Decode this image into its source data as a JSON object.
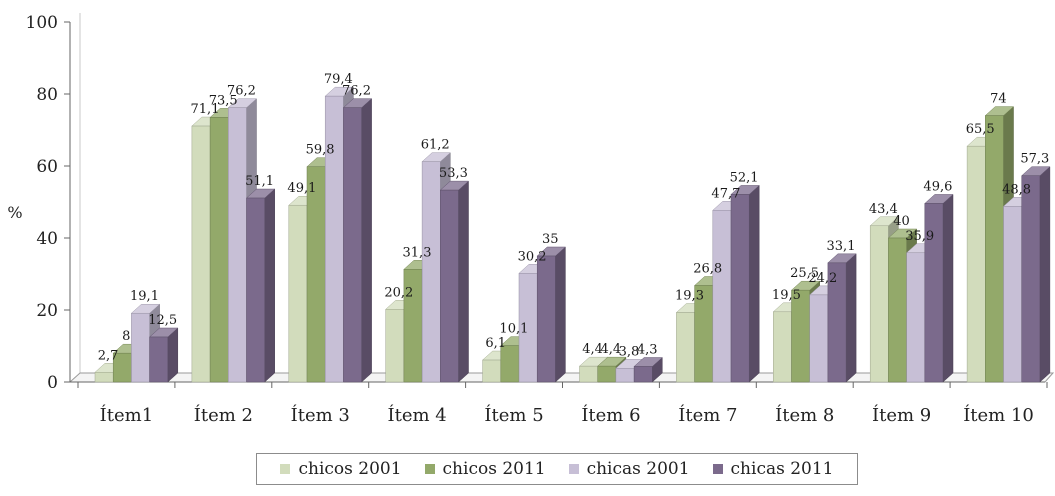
{
  "chart_data": {
    "type": "bar",
    "title": "",
    "xlabel": "",
    "ylabel": "%",
    "ylim": [
      0,
      100
    ],
    "yticks": [
      "0",
      "20",
      "40",
      "60",
      "80",
      "100"
    ],
    "categories": [
      "Ítem1",
      "Ítem 2",
      "Ítem 3",
      "Ítem 4",
      "Ítem 5",
      "Ítem 6",
      "Ítem 7",
      "Ítem 8",
      "Ítem 9",
      "Ítem 10"
    ],
    "series": [
      {
        "name": "chicos 2001",
        "color": "#d2dcbc",
        "values": [
          2.7,
          71.1,
          49.1,
          20.2,
          6.1,
          4.4,
          19.3,
          19.5,
          43.4,
          65.5
        ],
        "labels": [
          "2,7",
          "71,1",
          "49,1",
          "20,2",
          "6,1",
          "4,4",
          "19,3",
          "19,5",
          "43,4",
          "65,5"
        ]
      },
      {
        "name": "chicos 2011",
        "color": "#93a96a",
        "values": [
          8,
          73.5,
          59.8,
          31.3,
          10.1,
          4.4,
          26.8,
          25.5,
          40,
          74
        ],
        "labels": [
          "8",
          "73,5",
          "59,8",
          "31,3",
          "10,1",
          "4,4",
          "26,8",
          "25,5",
          "40",
          "74"
        ]
      },
      {
        "name": "chicas 2001",
        "color": "#c7bfd6",
        "values": [
          19.1,
          76.2,
          79.4,
          61.2,
          30.2,
          3.8,
          47.7,
          24.2,
          35.9,
          48.8
        ],
        "labels": [
          "19,1",
          "76,2",
          "79,4",
          "61,2",
          "30,2",
          "3,8",
          "47,7",
          "24,2",
          "35,9",
          "48,8"
        ]
      },
      {
        "name": "chicas 2011",
        "color": "#7b6a8c",
        "values": [
          12.5,
          51.1,
          76.2,
          53.3,
          35,
          4.3,
          52.1,
          33.1,
          49.6,
          57.3
        ],
        "labels": [
          "12,5",
          "51,1",
          "76,2",
          "53,3",
          "35",
          "4,3",
          "52,1",
          "33,1",
          "49,6",
          "57,3"
        ]
      }
    ],
    "grid": false,
    "legend_position": "bottom"
  }
}
